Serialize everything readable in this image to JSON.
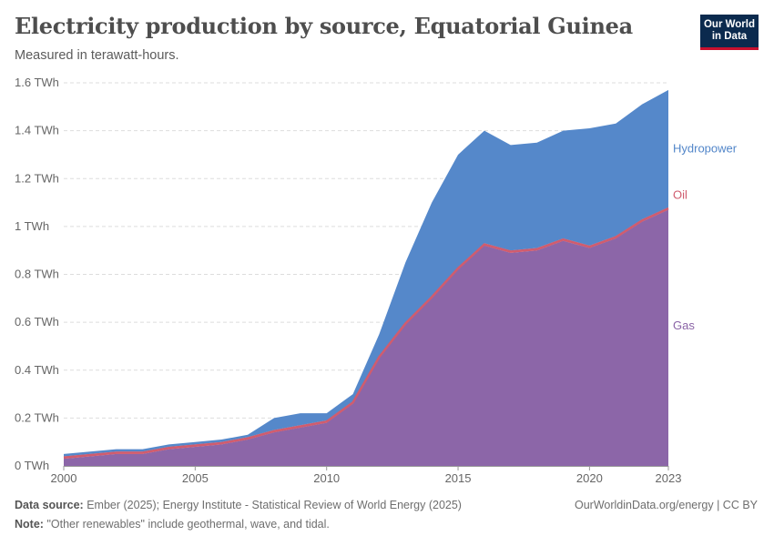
{
  "header": {
    "title": "Electricity production by source, Equatorial Guinea",
    "subtitle": "Measured in terawatt-hours."
  },
  "logo": {
    "line1": "Our World",
    "line2": "in Data"
  },
  "footer": {
    "source_label": "Data source:",
    "source_text": "Ember (2025); Energy Institute - Statistical Review of World Energy (2025)",
    "note_label": "Note:",
    "note_text": "\"Other renewables\" include geothermal, wave, and tidal.",
    "credit": "OurWorldinData.org/energy | CC BY"
  },
  "colors": {
    "gas": "#8a63a6",
    "oil": "#d05c6e",
    "hydropower": "#5286c9",
    "grid": "#dddddd",
    "axis": "#666666"
  },
  "chart_data": {
    "type": "area",
    "stacked": true,
    "title": "Electricity production by source, Equatorial Guinea",
    "ylabel": "TWh",
    "ylim": [
      0,
      1.6
    ],
    "yticks": [
      0,
      0.2,
      0.4,
      0.6,
      0.8,
      1,
      1.2,
      1.4,
      1.6
    ],
    "ytick_labels": [
      "0 TWh",
      "0.2 TWh",
      "0.4 TWh",
      "0.6 TWh",
      "0.8 TWh",
      "1 TWh",
      "1.2 TWh",
      "1.4 TWh",
      "1.6 TWh"
    ],
    "xlim": [
      2000,
      2023
    ],
    "xticks": [
      2000,
      2005,
      2010,
      2015,
      2020,
      2023
    ],
    "xtick_labels": [
      "2000",
      "2005",
      "2010",
      "2015",
      "2020",
      "2023"
    ],
    "x": [
      2000,
      2001,
      2002,
      2003,
      2004,
      2005,
      2006,
      2007,
      2008,
      2009,
      2010,
      2011,
      2012,
      2013,
      2014,
      2015,
      2016,
      2017,
      2018,
      2019,
      2020,
      2021,
      2022,
      2023
    ],
    "series": [
      {
        "name": "Gas",
        "key": "gas",
        "values": [
          0.03,
          0.04,
          0.05,
          0.05,
          0.07,
          0.08,
          0.09,
          0.11,
          0.14,
          0.16,
          0.18,
          0.26,
          0.45,
          0.59,
          0.7,
          0.82,
          0.92,
          0.89,
          0.9,
          0.94,
          0.91,
          0.95,
          1.02,
          1.07
        ]
      },
      {
        "name": "Oil",
        "key": "oil",
        "values": [
          0.01,
          0.01,
          0.01,
          0.01,
          0.01,
          0.01,
          0.01,
          0.01,
          0.01,
          0.01,
          0.01,
          0.01,
          0.01,
          0.01,
          0.01,
          0.01,
          0.01,
          0.01,
          0.01,
          0.01,
          0.01,
          0.01,
          0.01,
          0.01
        ]
      },
      {
        "name": "Hydropower",
        "key": "hydropower",
        "values": [
          0.01,
          0.01,
          0.01,
          0.01,
          0.01,
          0.01,
          0.01,
          0.01,
          0.05,
          0.05,
          0.03,
          0.03,
          0.09,
          0.25,
          0.39,
          0.47,
          0.47,
          0.44,
          0.44,
          0.45,
          0.49,
          0.47,
          0.48,
          0.49
        ]
      }
    ],
    "legend": "inline-right"
  }
}
